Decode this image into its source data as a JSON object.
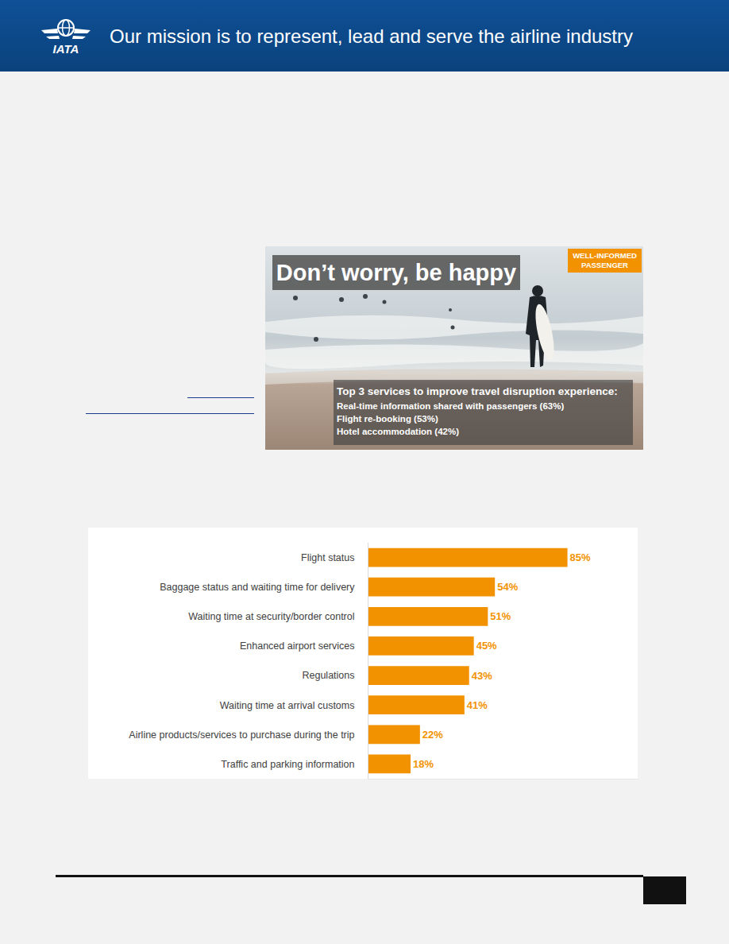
{
  "header": {
    "logo_text": "IATA",
    "text": "Our mission is to represent, lead and serve the airline industry"
  },
  "image_card": {
    "title": "Don’t worry, be happy",
    "tag": [
      "WELL-INFORMED",
      "PASSENGER"
    ],
    "box_title": "Top 3 services to improve travel disruption experience:",
    "box_lines": [
      "Real-time information shared with passengers (63%)",
      "Flight re-booking (53%)",
      "Hotel accommodation (42%)"
    ]
  },
  "chart_data": {
    "type": "bar",
    "orientation": "horizontal",
    "categories": [
      "Flight status",
      "Baggage status and waiting time for delivery",
      "Waiting time at security/border control",
      "Enhanced airport services",
      "Regulations",
      "Waiting time at arrival customs",
      "Airline products/services to purchase during the trip",
      "Traffic and parking information"
    ],
    "values": [
      85,
      54,
      51,
      45,
      43,
      41,
      22,
      18
    ],
    "value_labels": [
      "85%",
      "54%",
      "51%",
      "45%",
      "43%",
      "41%",
      "22%",
      "18%"
    ],
    "data_labels": true,
    "color": "#F39200",
    "xlim": [
      0,
      115
    ],
    "xticks": [],
    "tick_labels": "y",
    "grid": false
  }
}
